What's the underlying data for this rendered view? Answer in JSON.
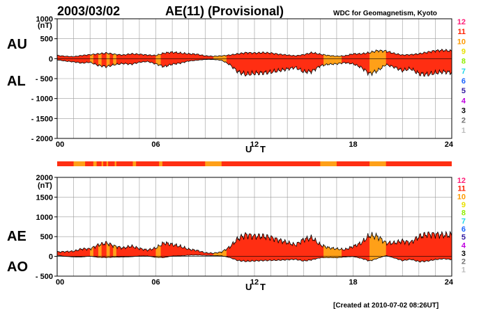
{
  "header": {
    "date": "2003/03/02",
    "title": "AE(11) (Provisional)",
    "organization": "WDC for Geomagnetism, Kyoto"
  },
  "footer": {
    "created": "[Created at 2010-07-02 08:26UT]"
  },
  "colors": {
    "fill_11": "#ff2e12",
    "fill_10": "#ffa018",
    "outline": "#000000",
    "station_bar_11": "#ff2e12",
    "station_bar_10": "#ffa018"
  },
  "station_scale": [
    {
      "label": "12",
      "color": "#ff1e78"
    },
    {
      "label": "11",
      "color": "#ff2000"
    },
    {
      "label": "10",
      "color": "#ff9a00"
    },
    {
      "label": "9",
      "color": "#e8e000"
    },
    {
      "label": "8",
      "color": "#90ee00"
    },
    {
      "label": "7",
      "color": "#20d8e8"
    },
    {
      "label": "6",
      "color": "#1c64ff"
    },
    {
      "label": "5",
      "color": "#3218a0"
    },
    {
      "label": "4",
      "color": "#c000e0"
    },
    {
      "label": "3",
      "color": "#000000"
    },
    {
      "label": "2",
      "color": "#707070"
    },
    {
      "label": "1",
      "color": "#bcbcbc"
    }
  ],
  "chart_data": [
    {
      "type": "area",
      "panel": "AU/AL",
      "series_labels": [
        "AU",
        "AL"
      ],
      "ylabel_unit": "(nT)",
      "xlabel": "U T",
      "xlim": [
        0,
        24
      ],
      "ylim": [
        -2000,
        1000
      ],
      "xticks": [
        "00",
        "06",
        "12",
        "18",
        "24"
      ],
      "yticks": [
        "1000",
        "500",
        "0",
        "- 500",
        "- 1000",
        "- 1500",
        "- 2000"
      ],
      "x_hours": [
        0,
        0.5,
        1,
        1.5,
        2,
        2.5,
        3,
        3.5,
        4,
        4.5,
        5,
        5.5,
        6,
        6.5,
        7,
        7.5,
        8,
        8.5,
        9,
        9.5,
        10,
        10.5,
        11,
        11.5,
        12,
        12.5,
        13,
        13.5,
        14,
        14.5,
        15,
        15.5,
        16,
        16.5,
        17,
        17.5,
        18,
        18.5,
        19,
        19.5,
        20,
        20.5,
        21,
        21.5,
        22,
        22.5,
        23,
        23.5,
        24
      ],
      "AU": [
        80,
        60,
        50,
        80,
        100,
        120,
        140,
        110,
        90,
        120,
        110,
        90,
        80,
        140,
        160,
        140,
        120,
        110,
        70,
        60,
        70,
        90,
        120,
        150,
        140,
        150,
        140,
        110,
        90,
        70,
        100,
        150,
        110,
        80,
        60,
        70,
        120,
        120,
        150,
        200,
        190,
        130,
        90,
        100,
        120,
        160,
        200,
        210,
        190
      ],
      "AL": [
        -30,
        -60,
        -80,
        -110,
        -90,
        -170,
        -200,
        -150,
        -120,
        -140,
        -90,
        -70,
        -130,
        -200,
        -140,
        -110,
        -60,
        -40,
        -20,
        -20,
        -40,
        -150,
        -330,
        -400,
        -370,
        -360,
        -340,
        -300,
        -260,
        -220,
        -330,
        -320,
        -180,
        -140,
        -130,
        -100,
        -130,
        -220,
        -380,
        -300,
        -150,
        -210,
        -300,
        -250,
        -380,
        -400,
        -360,
        -330,
        -350
      ],
      "orange_intervals": [
        [
          2.0,
          2.2
        ],
        [
          2.5,
          2.7
        ],
        [
          3.0,
          3.2
        ],
        [
          3.4,
          3.6
        ],
        [
          6.0,
          6.3
        ],
        [
          9.5,
          10.3
        ],
        [
          16.2,
          17.3
        ],
        [
          19.0,
          20.0
        ]
      ]
    },
    {
      "type": "area",
      "panel": "AE/AO",
      "series_labels": [
        "AE",
        "AO"
      ],
      "ylabel_unit": "(nT)",
      "xlabel": "U T",
      "xlim": [
        0,
        24
      ],
      "ylim": [
        -500,
        2000
      ],
      "xticks": [
        "00",
        "06",
        "12",
        "18",
        "24"
      ],
      "yticks": [
        "2000",
        "1500",
        "1000",
        "500",
        "0",
        "- 500"
      ],
      "x_hours": [
        0,
        0.5,
        1,
        1.5,
        2,
        2.5,
        3,
        3.5,
        4,
        4.5,
        5,
        5.5,
        6,
        6.5,
        7,
        7.5,
        8,
        8.5,
        9,
        9.5,
        10,
        10.5,
        11,
        11.5,
        12,
        12.5,
        13,
        13.5,
        14,
        14.5,
        15,
        15.5,
        16,
        16.5,
        17,
        17.5,
        18,
        18.5,
        19,
        19.5,
        20,
        20.5,
        21,
        21.5,
        22,
        22.5,
        23,
        23.5,
        24
      ],
      "AE": [
        110,
        120,
        130,
        190,
        190,
        290,
        340,
        260,
        210,
        260,
        200,
        160,
        210,
        340,
        300,
        250,
        180,
        150,
        90,
        80,
        110,
        240,
        450,
        550,
        510,
        510,
        480,
        410,
        350,
        290,
        430,
        470,
        290,
        220,
        190,
        170,
        250,
        340,
        530,
        500,
        340,
        340,
        390,
        350,
        500,
        560,
        560,
        540,
        540
      ],
      "AO": [
        30,
        0,
        -15,
        -15,
        5,
        -25,
        -30,
        -20,
        -15,
        -10,
        10,
        10,
        -25,
        -30,
        10,
        15,
        30,
        35,
        25,
        20,
        15,
        -30,
        -105,
        -125,
        -115,
        -105,
        -100,
        -95,
        -85,
        -75,
        -115,
        -85,
        -35,
        -30,
        -35,
        -15,
        -5,
        -50,
        -115,
        -50,
        20,
        -40,
        -105,
        -75,
        -130,
        -120,
        -80,
        -60,
        -80
      ],
      "orange_intervals": [
        [
          2.0,
          2.2
        ],
        [
          2.5,
          2.7
        ],
        [
          3.0,
          3.2
        ],
        [
          3.4,
          3.6
        ],
        [
          6.0,
          6.3
        ],
        [
          9.5,
          10.3
        ],
        [
          16.2,
          17.3
        ],
        [
          19.0,
          20.0
        ]
      ]
    }
  ],
  "station_bar_intervals": [
    [
      1.0,
      1.7
    ],
    [
      2.2,
      2.4
    ],
    [
      2.7,
      2.8
    ],
    [
      3.0,
      3.1
    ],
    [
      3.5,
      3.6
    ],
    [
      4.6,
      4.8
    ],
    [
      6.2,
      6.4
    ],
    [
      9.0,
      10.0
    ],
    [
      16.0,
      17.0
    ],
    [
      19.0,
      20.0
    ]
  ]
}
